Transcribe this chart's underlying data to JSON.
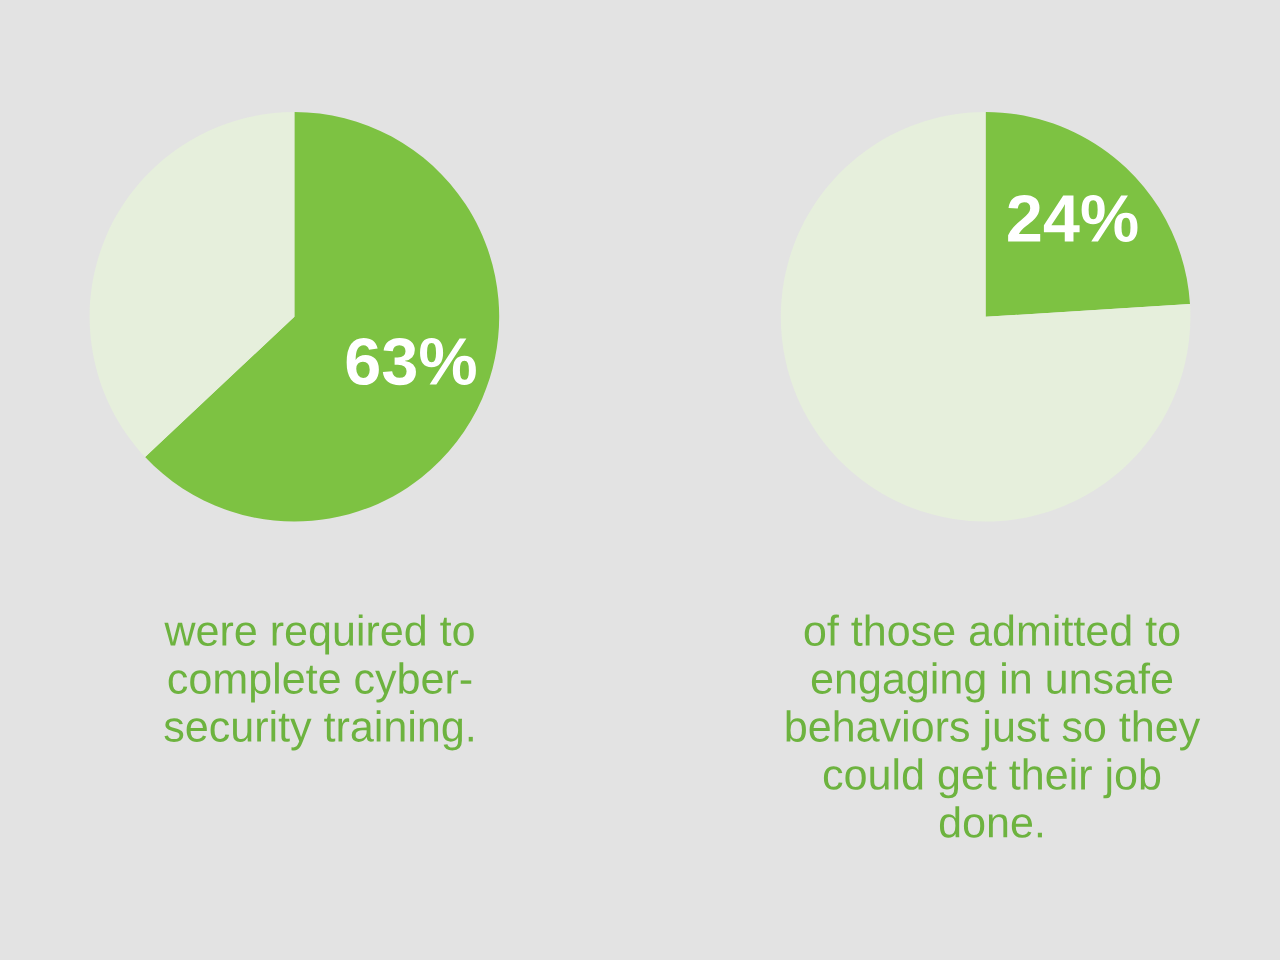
{
  "chart_data": [
    {
      "type": "pie",
      "categories": [
        null,
        null
      ],
      "values": [
        63,
        37
      ],
      "colors": [
        "#7dc242",
        "#e6efdc"
      ],
      "value_labels": [
        "63%",
        null
      ],
      "annotations": [
        "were required to\ncomplete cyber-\nsecurity training."
      ]
    },
    {
      "type": "pie",
      "categories": [
        null,
        null
      ],
      "values": [
        24,
        76
      ],
      "colors": [
        "#7dc242",
        "#e6efdc"
      ],
      "value_labels": [
        "24%",
        null
      ],
      "annotations": [
        "of those admitted to\nengaging in unsafe\nbehaviors just so they\ncould get their job\ndone."
      ]
    }
  ]
}
